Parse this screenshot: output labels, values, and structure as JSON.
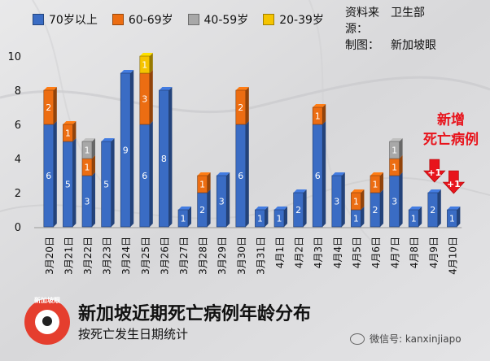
{
  "chart_data": {
    "type": "bar",
    "stacked": true,
    "categories": [
      "3月20日",
      "3月21日",
      "3月22日",
      "3月23日",
      "3月24日",
      "3月25日",
      "3月26日",
      "3月27日",
      "3月28日",
      "3月29日",
      "3月30日",
      "3月31日",
      "4月1日",
      "4月2日",
      "4月3日",
      "4月4日",
      "4月5日",
      "4月6日",
      "4月7日",
      "4月8日",
      "4月9日",
      "4月10日"
    ],
    "series": [
      {
        "name": "70岁以上",
        "color": "#3a6cc4",
        "values": [
          6,
          5,
          3,
          5,
          9,
          6,
          8,
          1,
          2,
          3,
          6,
          1,
          1,
          2,
          6,
          3,
          1,
          2,
          3,
          1,
          2,
          1
        ]
      },
      {
        "name": "60-69岁",
        "color": "#ec6d12",
        "values": [
          2,
          1,
          1,
          0,
          0,
          3,
          0,
          0,
          1,
          0,
          2,
          0,
          0,
          0,
          1,
          0,
          1,
          1,
          1,
          0,
          0,
          0
        ]
      },
      {
        "name": "40-59岁",
        "color": "#a8a8a8",
        "values": [
          0,
          0,
          1,
          0,
          0,
          0,
          0,
          0,
          0,
          0,
          0,
          0,
          0,
          0,
          0,
          0,
          0,
          0,
          1,
          0,
          0,
          0
        ]
      },
      {
        "name": "20-39岁",
        "color": "#f5c400",
        "values": [
          0,
          0,
          0,
          0,
          0,
          1,
          0,
          0,
          0,
          0,
          0,
          0,
          0,
          0,
          0,
          0,
          0,
          0,
          0,
          0,
          0,
          0
        ]
      }
    ],
    "yticks": [
      0,
      2,
      4,
      6,
      8,
      10
    ],
    "ylim": [
      0,
      10
    ],
    "grid": false,
    "legend_position": "top-left",
    "annotations": [
      {
        "text": "+1",
        "category": "4月9日"
      },
      {
        "text": "+1",
        "category": "4月10日"
      }
    ]
  },
  "source": {
    "label1": "资料来源：",
    "value1": "卫生部",
    "label2": "制图：",
    "value2": "新加坡眼"
  },
  "annotation_text": [
    "新增",
    "死亡病例"
  ],
  "footer": {
    "logo_text": "新加坡眼",
    "title": "新加坡近期死亡病例年龄分布",
    "subtitle": "按死亡发生日期统计",
    "wechat": "微信号: kanxinjiapo"
  },
  "colors": {
    "arrow": "#e8141c",
    "bar_edge": "#1f3f80"
  }
}
